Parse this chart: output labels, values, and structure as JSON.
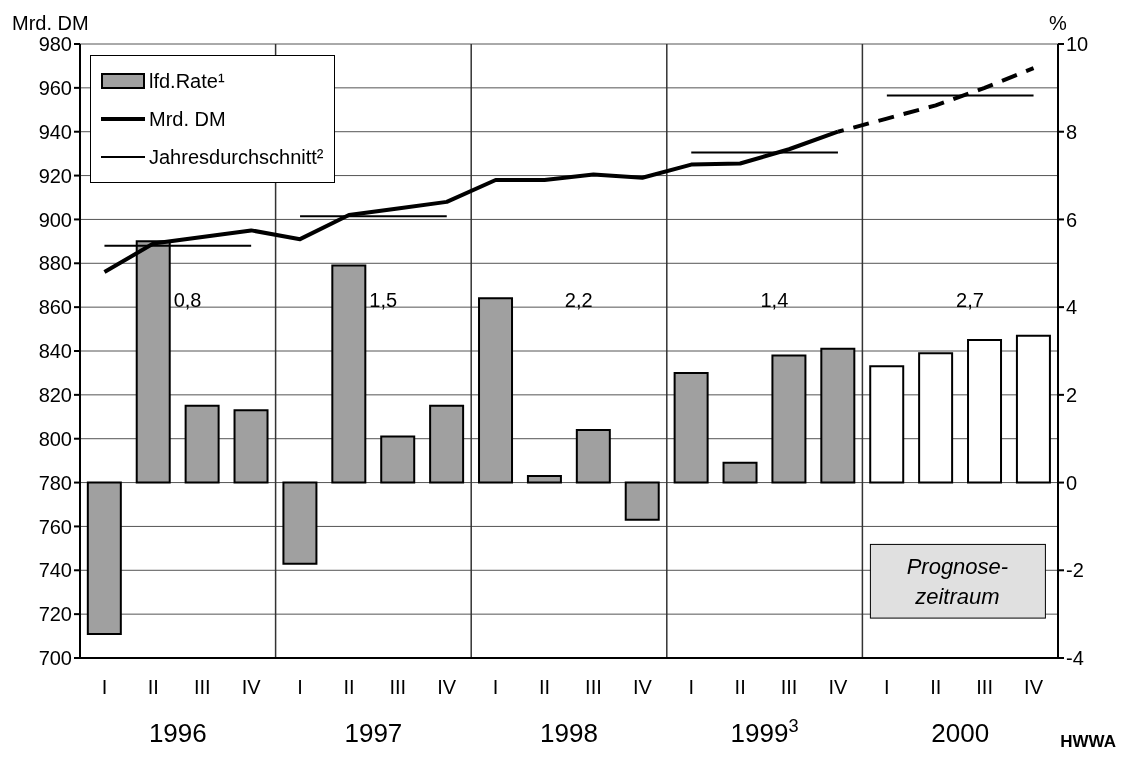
{
  "chart_data": {
    "type": "bar",
    "ylabel": "Mrd. DM",
    "y2label": "%",
    "categories": [
      "I",
      "II",
      "III",
      "IV",
      "I",
      "II",
      "III",
      "IV",
      "I",
      "II",
      "III",
      "IV",
      "I",
      "II",
      "III",
      "IV",
      "I",
      "II",
      "III",
      "IV"
    ],
    "series": [
      {
        "name": "lfd.Rate¹",
        "axis": "y2",
        "color": "#a0a0a0",
        "colors": [
          "#a0a0a0",
          "#a0a0a0",
          "#a0a0a0",
          "#a0a0a0",
          "#a0a0a0",
          "#a0a0a0",
          "#a0a0a0",
          "#a0a0a0",
          "#a0a0a0",
          "#a0a0a0",
          "#a0a0a0",
          "#a0a0a0",
          "#a0a0a0",
          "#a0a0a0",
          "#a0a0a0",
          "#a0a0a0",
          "#ffffff",
          "#ffffff",
          "#ffffff",
          "#ffffff"
        ],
        "values": [
          -3.45,
          5.5,
          1.75,
          1.65,
          -1.85,
          4.95,
          1.05,
          1.75,
          4.2,
          0.15,
          1.2,
          -0.85,
          2.5,
          0.45,
          2.9,
          3.05,
          2.65,
          2.95,
          3.25,
          3.35
        ]
      },
      {
        "name": "Mrd. DM",
        "type": "line",
        "color": "#000000",
        "line_style": "solid",
        "values": [
          876,
          889,
          892,
          895,
          891,
          902,
          905,
          908,
          918,
          918,
          920.5,
          919,
          925,
          925.5,
          932,
          940,
          null,
          null,
          null,
          null
        ]
      },
      {
        "type": "line",
        "color": "#000000",
        "line_style": "dashed",
        "values": [
          null,
          null,
          null,
          null,
          null,
          null,
          null,
          null,
          null,
          null,
          null,
          null,
          null,
          null,
          null,
          940,
          946,
          952,
          960,
          969
        ]
      },
      {
        "name": "Jahresdurchschnitt²",
        "type": "step",
        "color": "#000000",
        "line_style": "solid",
        "values": [
          888,
          888,
          888,
          888,
          901.5,
          901.5,
          901.5,
          901.5,
          null,
          null,
          null,
          null,
          930.5,
          930.5,
          930.5,
          930.5,
          956.5,
          956.5,
          956.5,
          956.5
        ]
      }
    ],
    "ylim": [
      700,
      980
    ],
    "yticks": [
      700,
      720,
      740,
      760,
      780,
      800,
      820,
      840,
      860,
      880,
      900,
      920,
      940,
      960,
      980
    ],
    "y2lim": [
      -4,
      10
    ],
    "y2ticks": [
      -4,
      -2,
      0,
      2,
      4,
      6,
      8,
      10
    ],
    "grid": true,
    "legend": "top left",
    "annotations": [
      "1996",
      "1997",
      "1998",
      "1999$^{3}$",
      "2000",
      "0,8",
      "1,5",
      "2,2",
      "1,4",
      "2,7",
      "Prognose-zeitraum",
      "HWWA"
    ]
  }
}
